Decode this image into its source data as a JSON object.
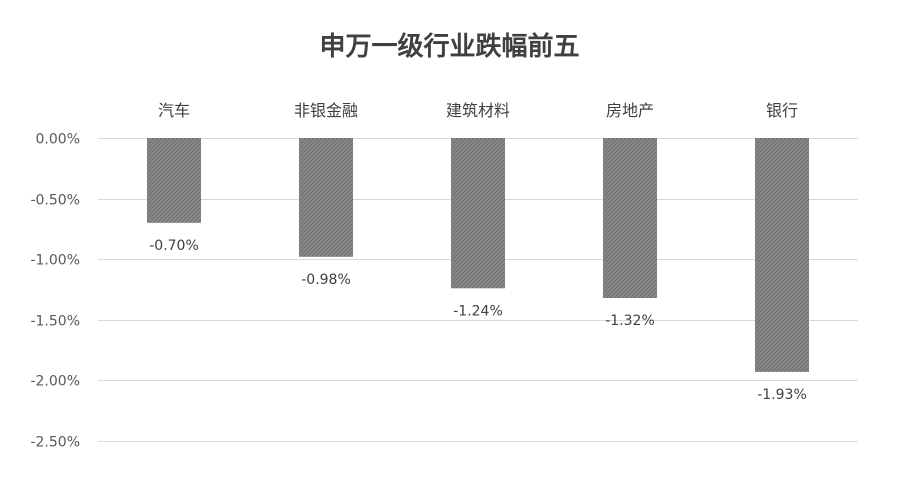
{
  "chart_data": {
    "type": "bar",
    "title": "申万一级行业跌幅前五",
    "categories": [
      "汽车",
      "非银金融",
      "建筑材料",
      "房地产",
      "银行"
    ],
    "values": [
      -0.7,
      -0.98,
      -1.24,
      -1.32,
      -1.93
    ],
    "data_labels": [
      "-0.70%",
      "-0.98%",
      "-1.24%",
      "-1.32%",
      "-1.93%"
    ],
    "y_ticks": [
      0,
      -0.5,
      -1.0,
      -1.5,
      -2.0,
      -2.5
    ],
    "y_tick_labels": [
      "0.00%",
      "-0.50%",
      "-1.00%",
      "-1.50%",
      "-2.00%",
      "-2.50%"
    ],
    "ylim": [
      -2.5,
      0
    ],
    "xlabel": "",
    "ylabel": "",
    "grid": true,
    "category_axis_position": "top",
    "bar_color": "#7f7f7f",
    "gridline_color": "#d9d9d9"
  }
}
